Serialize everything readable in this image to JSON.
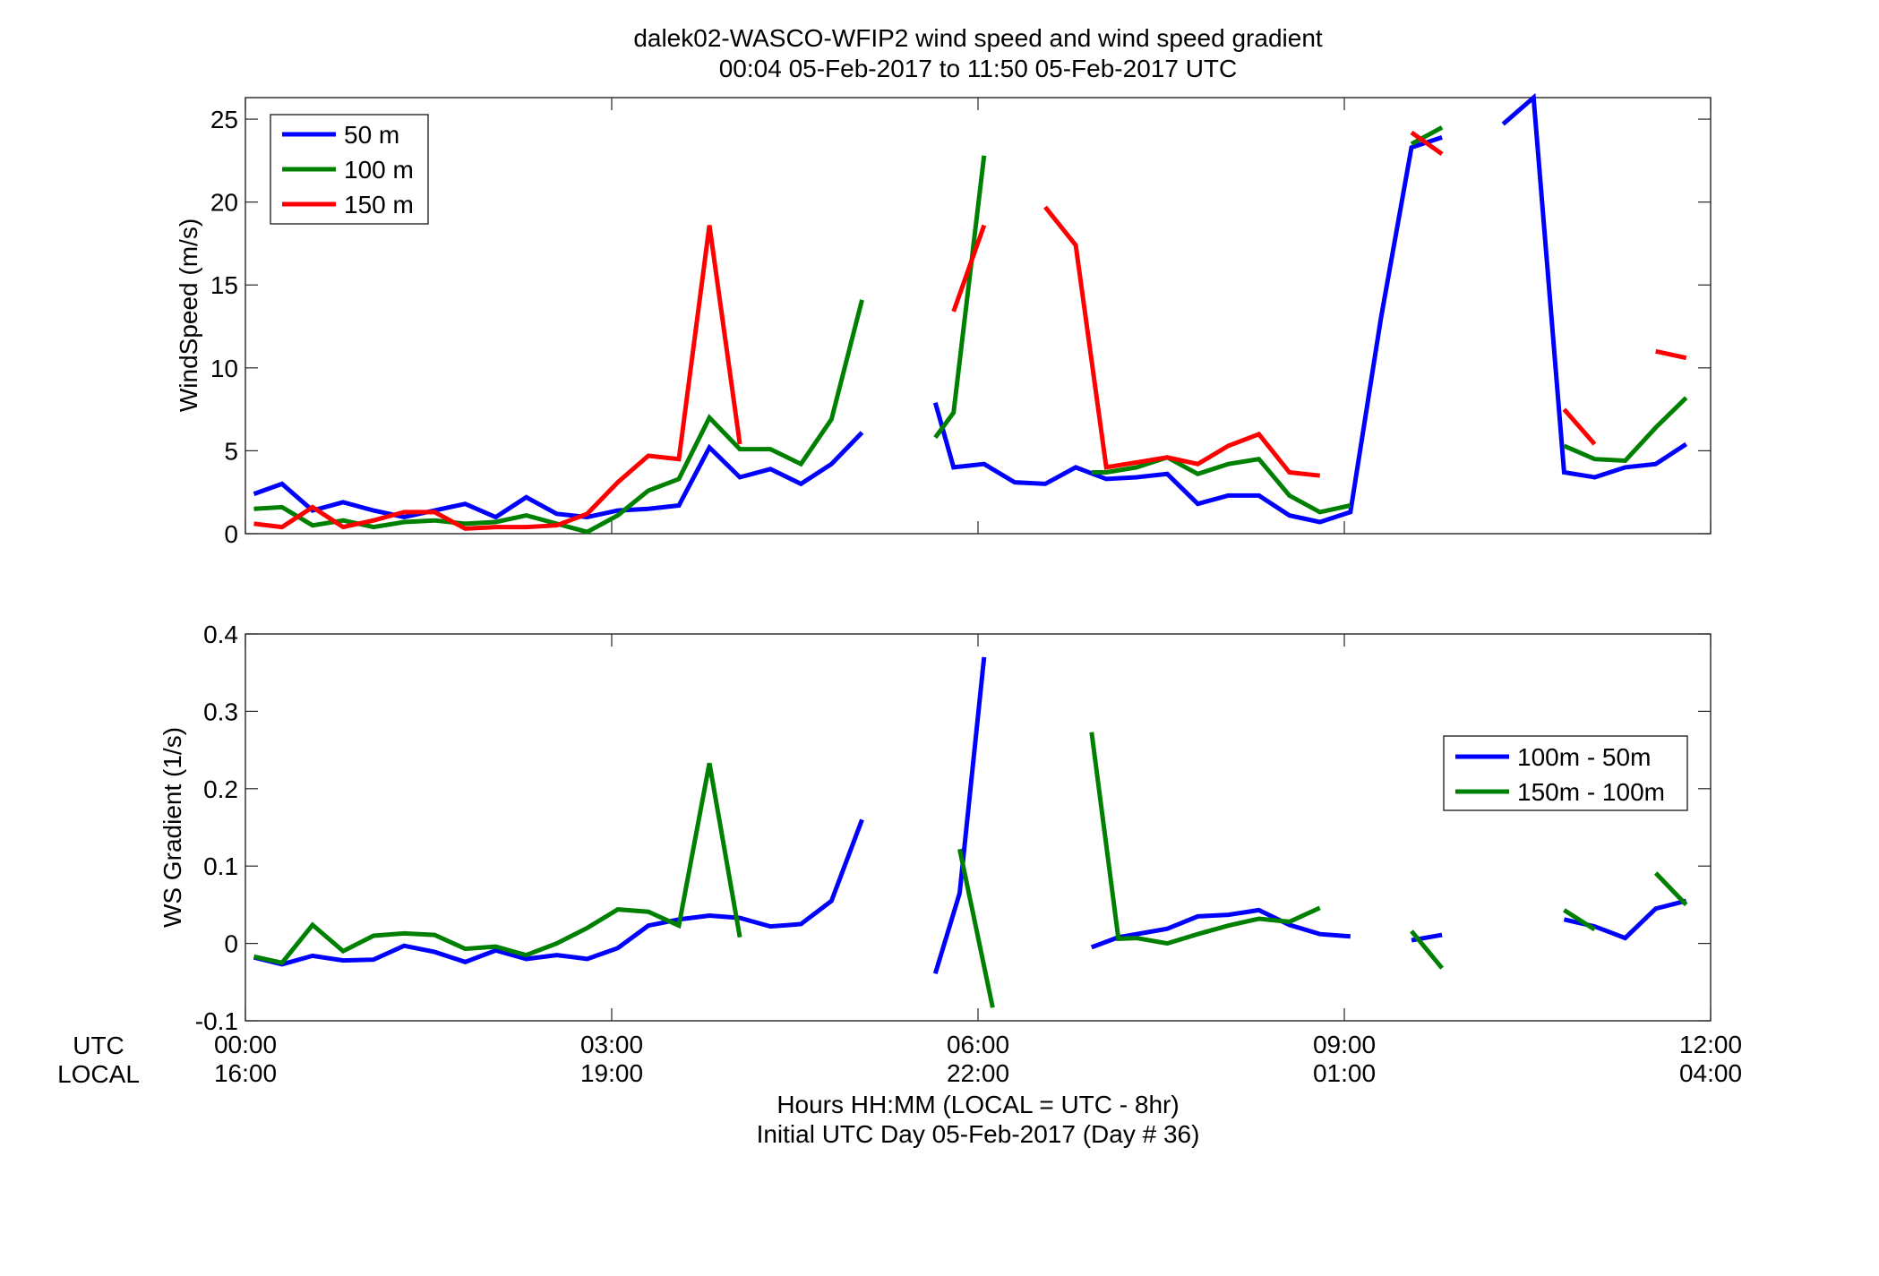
{
  "chart_data": [
    {
      "type": "line",
      "title": "dalek02-WASCO-WFIP2  wind speed and wind speed gradient",
      "subtitle": "00:04 05-Feb-2017 to 11:50 05-Feb-2017  UTC",
      "ylabel": "WindSpeed (m/s)",
      "xlim": [
        0,
        12
      ],
      "ylim": [
        0,
        26.3
      ],
      "yticks": [
        0,
        5,
        10,
        15,
        20,
        25
      ],
      "grid": false,
      "legend": "top-left",
      "series": [
        {
          "name": "50 m",
          "color": "#0000ff",
          "points": [
            [
              0.07,
              2.4
            ],
            [
              0.3,
              3.0
            ],
            [
              0.55,
              1.4
            ],
            [
              0.8,
              1.9
            ],
            [
              1.05,
              1.4
            ],
            [
              1.3,
              1.0
            ],
            [
              1.55,
              1.4
            ],
            [
              1.8,
              1.8
            ],
            [
              2.05,
              1.0
            ],
            [
              2.3,
              2.2
            ],
            [
              2.55,
              1.2
            ],
            [
              2.8,
              1.0
            ],
            [
              3.05,
              1.4
            ],
            [
              3.3,
              1.5
            ],
            [
              3.55,
              1.7
            ],
            [
              3.8,
              5.2
            ],
            [
              4.05,
              3.4
            ],
            [
              4.3,
              3.9
            ],
            [
              4.55,
              3.0
            ],
            [
              4.8,
              4.2
            ],
            [
              5.05,
              6.1
            ],
            null,
            [
              5.65,
              7.9
            ],
            [
              5.8,
              4.0
            ],
            [
              6.05,
              4.2
            ],
            [
              6.3,
              3.1
            ],
            [
              6.55,
              3.0
            ],
            [
              6.8,
              4.0
            ],
            [
              7.05,
              3.3
            ],
            [
              7.3,
              3.4
            ],
            [
              7.55,
              3.6
            ],
            [
              7.8,
              1.8
            ],
            [
              8.05,
              2.3
            ],
            [
              8.3,
              2.3
            ],
            [
              8.55,
              1.1
            ],
            [
              8.8,
              0.7
            ],
            [
              9.05,
              1.3
            ],
            [
              9.3,
              13.0
            ],
            [
              9.55,
              23.3
            ],
            [
              9.8,
              23.9
            ],
            null,
            [
              10.3,
              24.7
            ],
            [
              10.55,
              26.3
            ],
            [
              10.8,
              3.7
            ],
            [
              11.05,
              3.4
            ],
            [
              11.3,
              4.0
            ],
            [
              11.55,
              4.2
            ],
            [
              11.8,
              5.4
            ]
          ]
        },
        {
          "name": "100 m",
          "color": "#008000",
          "points": [
            [
              0.07,
              1.5
            ],
            [
              0.3,
              1.6
            ],
            [
              0.55,
              0.5
            ],
            [
              0.8,
              0.8
            ],
            [
              1.05,
              0.4
            ],
            [
              1.3,
              0.7
            ],
            [
              1.55,
              0.8
            ],
            [
              1.8,
              0.6
            ],
            [
              2.05,
              0.7
            ],
            [
              2.3,
              1.1
            ],
            [
              2.55,
              0.6
            ],
            [
              2.8,
              0.1
            ],
            [
              3.05,
              1.1
            ],
            [
              3.3,
              2.6
            ],
            [
              3.55,
              3.3
            ],
            [
              3.8,
              7.0
            ],
            [
              4.05,
              5.1
            ],
            [
              4.3,
              5.1
            ],
            [
              4.55,
              4.2
            ],
            [
              4.8,
              6.9
            ],
            [
              5.05,
              14.1
            ],
            null,
            [
              5.65,
              5.8
            ],
            [
              5.8,
              7.3
            ],
            [
              6.05,
              22.8
            ],
            null,
            [
              6.93,
              3.7
            ],
            [
              7.05,
              3.7
            ],
            [
              7.3,
              4.0
            ],
            [
              7.55,
              4.6
            ],
            [
              7.8,
              3.6
            ],
            [
              8.05,
              4.2
            ],
            [
              8.3,
              4.5
            ],
            [
              8.55,
              2.3
            ],
            [
              8.8,
              1.3
            ],
            [
              9.05,
              1.7
            ],
            null,
            [
              9.55,
              23.5
            ],
            [
              9.8,
              24.5
            ],
            null,
            [
              10.8,
              5.3
            ],
            [
              11.05,
              4.5
            ],
            [
              11.3,
              4.4
            ],
            [
              11.55,
              6.4
            ],
            [
              11.8,
              8.2
            ]
          ]
        },
        {
          "name": "150 m",
          "color": "#ff0000",
          "points": [
            [
              0.07,
              0.6
            ],
            [
              0.3,
              0.4
            ],
            [
              0.55,
              1.6
            ],
            [
              0.8,
              0.4
            ],
            [
              1.05,
              0.8
            ],
            [
              1.3,
              1.3
            ],
            [
              1.55,
              1.3
            ],
            [
              1.8,
              0.3
            ],
            [
              2.05,
              0.4
            ],
            [
              2.3,
              0.4
            ],
            [
              2.55,
              0.5
            ],
            [
              2.8,
              1.2
            ],
            [
              3.05,
              3.1
            ],
            [
              3.3,
              4.7
            ],
            [
              3.55,
              4.5
            ],
            [
              3.8,
              18.6
            ],
            [
              4.05,
              5.4
            ],
            null,
            [
              5.8,
              13.4
            ],
            [
              6.05,
              18.6
            ],
            null,
            [
              6.55,
              19.7
            ],
            [
              6.8,
              17.4
            ],
            [
              7.05,
              4.0
            ],
            [
              7.3,
              4.3
            ],
            [
              7.55,
              4.6
            ],
            [
              7.8,
              4.2
            ],
            [
              8.05,
              5.3
            ],
            [
              8.3,
              6.0
            ],
            [
              8.55,
              3.7
            ],
            [
              8.8,
              3.5
            ],
            null,
            [
              9.55,
              24.2
            ],
            [
              9.8,
              22.9
            ],
            null,
            [
              10.8,
              7.5
            ],
            [
              11.05,
              5.4
            ],
            null,
            [
              11.55,
              11.0
            ],
            [
              11.8,
              10.6
            ]
          ]
        }
      ]
    },
    {
      "type": "line",
      "ylabel": "WS Gradient (1/s)",
      "xlabel": "Hours HH:MM  (LOCAL = UTC - 8hr)",
      "xlabel2": "Initial UTC Day 05-Feb-2017 (Day # 36)",
      "xlim": [
        0,
        12
      ],
      "ylim": [
        -0.1,
        0.4
      ],
      "yticks": [
        -0.1,
        0,
        0.1,
        0.2,
        0.3,
        0.4
      ],
      "ytick_labels": [
        "-0.1",
        "0",
        "0.1",
        "0.2",
        "0.3",
        "0.4"
      ],
      "grid": false,
      "legend": "right",
      "series": [
        {
          "name": "100m - 50m",
          "color": "#0000ff",
          "points": [
            [
              0.07,
              -0.018
            ],
            [
              0.3,
              -0.027
            ],
            [
              0.55,
              -0.016
            ],
            [
              0.8,
              -0.022
            ],
            [
              1.05,
              -0.021
            ],
            [
              1.3,
              -0.003
            ],
            [
              1.55,
              -0.011
            ],
            [
              1.8,
              -0.024
            ],
            [
              2.05,
              -0.009
            ],
            [
              2.3,
              -0.02
            ],
            [
              2.55,
              -0.015
            ],
            [
              2.8,
              -0.02
            ],
            [
              3.05,
              -0.006
            ],
            [
              3.3,
              0.023
            ],
            [
              3.55,
              0.031
            ],
            [
              3.8,
              0.036
            ],
            [
              4.05,
              0.033
            ],
            [
              4.3,
              0.022
            ],
            [
              4.55,
              0.025
            ],
            [
              4.8,
              0.055
            ],
            [
              5.05,
              0.16
            ],
            null,
            [
              5.65,
              -0.039
            ],
            [
              5.85,
              0.065
            ],
            [
              6.05,
              0.37
            ],
            null,
            [
              6.93,
              -0.005
            ],
            [
              7.15,
              0.008
            ],
            [
              7.3,
              0.012
            ],
            [
              7.55,
              0.019
            ],
            [
              7.8,
              0.035
            ],
            [
              8.05,
              0.037
            ],
            [
              8.3,
              0.043
            ],
            [
              8.55,
              0.024
            ],
            [
              8.8,
              0.012
            ],
            [
              9.05,
              0.009
            ],
            null,
            [
              9.55,
              0.004
            ],
            [
              9.8,
              0.011
            ],
            null,
            [
              10.8,
              0.031
            ],
            [
              11.05,
              0.022
            ],
            [
              11.3,
              0.007
            ],
            [
              11.55,
              0.045
            ],
            [
              11.8,
              0.055
            ]
          ]
        },
        {
          "name": "150m - 100m",
          "color": "#008000",
          "points": [
            [
              0.07,
              -0.017
            ],
            [
              0.3,
              -0.025
            ],
            [
              0.55,
              0.024
            ],
            [
              0.8,
              -0.01
            ],
            [
              1.05,
              0.01
            ],
            [
              1.3,
              0.013
            ],
            [
              1.55,
              0.011
            ],
            [
              1.8,
              -0.007
            ],
            [
              2.05,
              -0.004
            ],
            [
              2.3,
              -0.015
            ],
            [
              2.55,
              0.0
            ],
            [
              2.8,
              0.02
            ],
            [
              3.05,
              0.044
            ],
            [
              3.3,
              0.041
            ],
            [
              3.55,
              0.023
            ],
            [
              3.8,
              0.233
            ],
            [
              4.05,
              0.008
            ],
            null,
            [
              5.85,
              0.122
            ],
            [
              6.12,
              -0.083
            ],
            null,
            [
              6.93,
              0.273
            ],
            [
              7.15,
              0.006
            ],
            [
              7.3,
              0.007
            ],
            [
              7.55,
              0.0
            ],
            [
              7.8,
              0.012
            ],
            [
              8.05,
              0.023
            ],
            [
              8.3,
              0.032
            ],
            [
              8.55,
              0.028
            ],
            [
              8.8,
              0.046
            ],
            null,
            [
              9.55,
              0.016
            ],
            [
              9.8,
              -0.032
            ],
            null,
            [
              10.8,
              0.043
            ],
            [
              11.05,
              0.018
            ],
            null,
            [
              11.55,
              0.091
            ],
            [
              11.8,
              0.05
            ]
          ]
        }
      ]
    }
  ],
  "x_axis": {
    "row1_label": "UTC",
    "row2_label": "LOCAL",
    "ticks": [
      {
        "value": 0,
        "utc": "00:00",
        "local": "16:00"
      },
      {
        "value": 3,
        "utc": "03:00",
        "local": "19:00"
      },
      {
        "value": 6,
        "utc": "06:00",
        "local": "22:00"
      },
      {
        "value": 9,
        "utc": "09:00",
        "local": "01:00"
      },
      {
        "value": 12,
        "utc": "12:00",
        "local": "04:00"
      }
    ]
  }
}
